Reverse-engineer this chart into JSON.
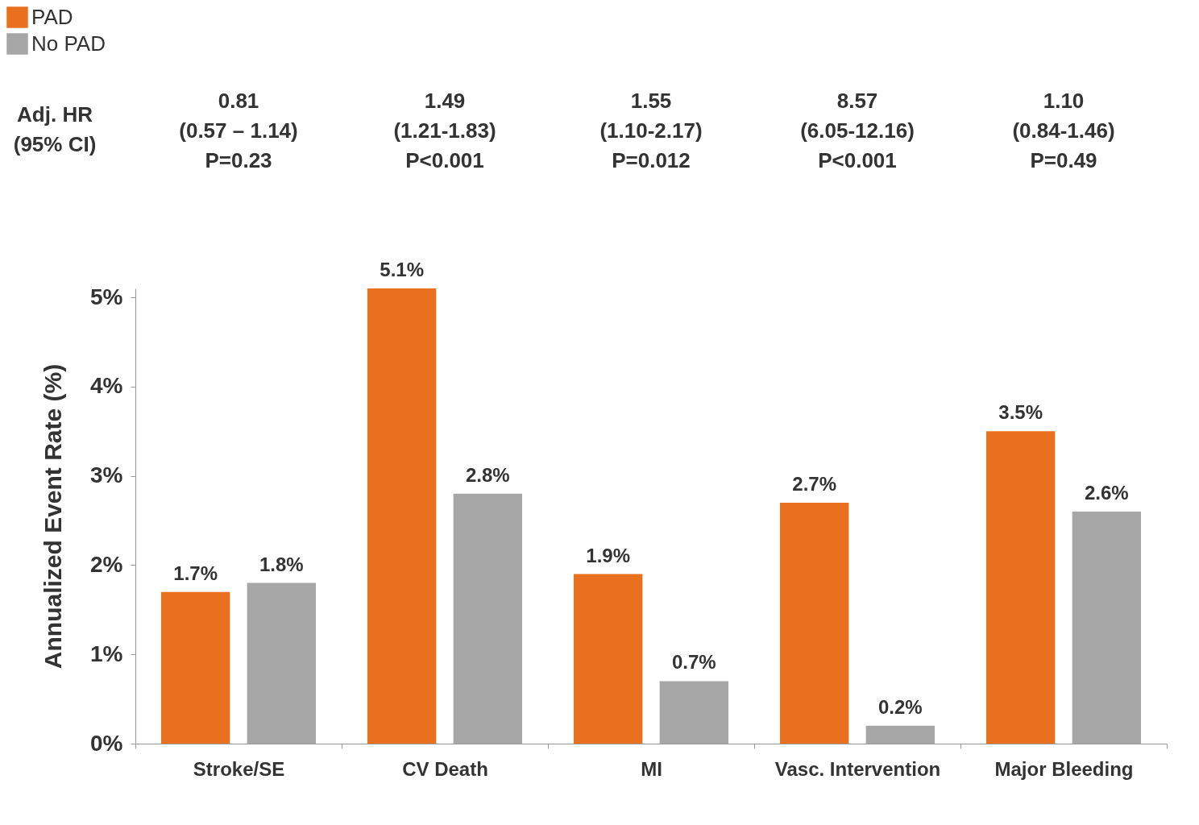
{
  "chart_data": {
    "type": "bar",
    "ylabel": "Annualized Event Rate  (%)",
    "categories": [
      "Stroke/SE",
      "CV Death",
      "MI",
      "Vasc. Intervention",
      "Major Bleeding"
    ],
    "series": [
      {
        "name": "PAD",
        "color": "#e8701f",
        "values": [
          1.7,
          5.1,
          1.9,
          2.7,
          3.5
        ],
        "value_labels": [
          "1.7%",
          "5.1%",
          "1.9%",
          "2.7%",
          "3.5%"
        ]
      },
      {
        "name": "No PAD",
        "color": "#a6a6a6",
        "values": [
          1.8,
          2.8,
          0.7,
          0.2,
          2.6
        ],
        "value_labels": [
          "1.8%",
          "2.8%",
          "0.7%",
          "0.2%",
          "2.6%"
        ]
      }
    ],
    "ylim": [
      0,
      5.1
    ],
    "yticks": [
      {
        "value": 0,
        "label": "0%"
      },
      {
        "value": 1,
        "label": "1%"
      },
      {
        "value": 2,
        "label": "2%"
      },
      {
        "value": 3,
        "label": "3%"
      },
      {
        "value": 4,
        "label": "4%"
      },
      {
        "value": 5,
        "label": "5%"
      }
    ],
    "grid": false,
    "legend": "top left",
    "annotations": [
      "Adj. HR\n(95% CI)",
      "0.81\n(0.57 – 1.14)\nP=0.23",
      "1.49\n(1.21-1.83)\nP<0.001",
      "1.55\n(1.10-2.17)\nP=0.012",
      "8.57\n(6.05-12.16)\nP<0.001",
      "1.10\n(0.84-1.46)\nP=0.49"
    ]
  }
}
